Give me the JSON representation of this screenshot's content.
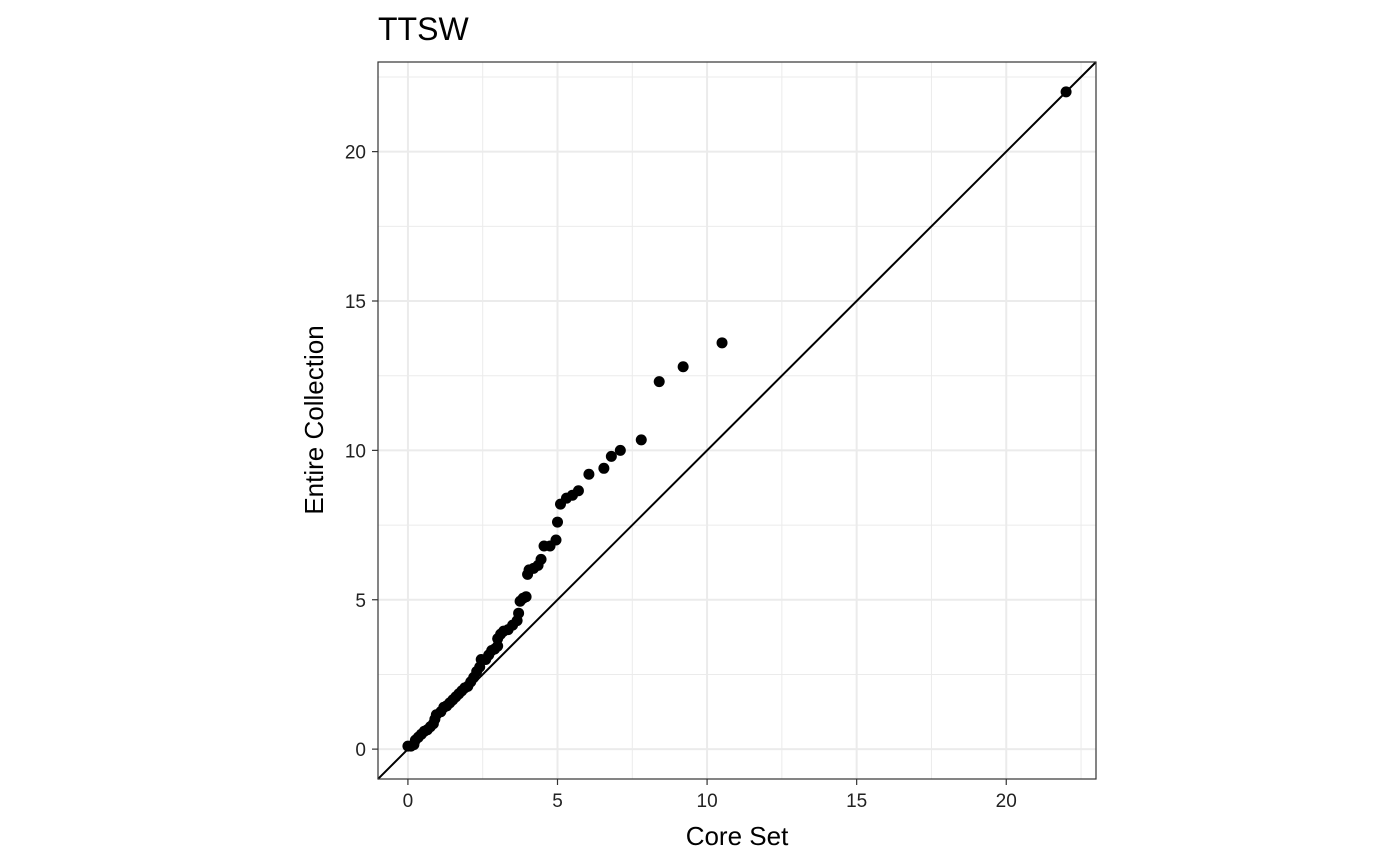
{
  "chart_data": {
    "type": "scatter",
    "title": "TTSW",
    "xlabel": "Core Set",
    "ylabel": "Entire Collection",
    "xlim": [
      -1,
      23
    ],
    "ylim": [
      -1,
      23
    ],
    "x_ticks": [
      0,
      5,
      10,
      15,
      20
    ],
    "y_ticks": [
      0,
      5,
      10,
      15,
      20
    ],
    "x_minor": [
      2.5,
      7.5,
      12.5,
      17.5,
      22.5
    ],
    "y_minor": [
      2.5,
      7.5,
      12.5,
      17.5,
      22.5
    ],
    "grid": true,
    "reference_line": "y = x",
    "legend": "none",
    "colors": {
      "points": "#000000",
      "panel_border": "#333333",
      "grid": "#ebebeb"
    },
    "points": [
      {
        "x": 0.0,
        "y": 0.1
      },
      {
        "x": 0.1,
        "y": 0.1
      },
      {
        "x": 0.2,
        "y": 0.15
      },
      {
        "x": 0.25,
        "y": 0.3
      },
      {
        "x": 0.35,
        "y": 0.4
      },
      {
        "x": 0.45,
        "y": 0.5
      },
      {
        "x": 0.55,
        "y": 0.6
      },
      {
        "x": 0.65,
        "y": 0.65
      },
      {
        "x": 0.75,
        "y": 0.75
      },
      {
        "x": 0.85,
        "y": 0.85
      },
      {
        "x": 0.9,
        "y": 1.0
      },
      {
        "x": 0.95,
        "y": 1.15
      },
      {
        "x": 1.1,
        "y": 1.25
      },
      {
        "x": 1.2,
        "y": 1.4
      },
      {
        "x": 1.3,
        "y": 1.45
      },
      {
        "x": 1.4,
        "y": 1.55
      },
      {
        "x": 1.5,
        "y": 1.65
      },
      {
        "x": 1.6,
        "y": 1.75
      },
      {
        "x": 1.7,
        "y": 1.85
      },
      {
        "x": 1.8,
        "y": 1.95
      },
      {
        "x": 1.9,
        "y": 2.05
      },
      {
        "x": 2.0,
        "y": 2.1
      },
      {
        "x": 2.1,
        "y": 2.25
      },
      {
        "x": 2.2,
        "y": 2.4
      },
      {
        "x": 2.3,
        "y": 2.6
      },
      {
        "x": 2.4,
        "y": 2.75
      },
      {
        "x": 2.45,
        "y": 3.0
      },
      {
        "x": 2.6,
        "y": 3.0
      },
      {
        "x": 2.7,
        "y": 3.15
      },
      {
        "x": 2.8,
        "y": 3.3
      },
      {
        "x": 2.9,
        "y": 3.35
      },
      {
        "x": 3.0,
        "y": 3.45
      },
      {
        "x": 3.0,
        "y": 3.7
      },
      {
        "x": 3.1,
        "y": 3.85
      },
      {
        "x": 3.2,
        "y": 3.95
      },
      {
        "x": 3.35,
        "y": 4.0
      },
      {
        "x": 3.5,
        "y": 4.15
      },
      {
        "x": 3.65,
        "y": 4.3
      },
      {
        "x": 3.7,
        "y": 4.55
      },
      {
        "x": 3.75,
        "y": 4.95
      },
      {
        "x": 3.85,
        "y": 5.05
      },
      {
        "x": 3.95,
        "y": 5.1
      },
      {
        "x": 4.0,
        "y": 5.85
      },
      {
        "x": 4.05,
        "y": 6.0
      },
      {
        "x": 4.2,
        "y": 6.05
      },
      {
        "x": 4.35,
        "y": 6.15
      },
      {
        "x": 4.45,
        "y": 6.35
      },
      {
        "x": 4.55,
        "y": 6.8
      },
      {
        "x": 4.75,
        "y": 6.8
      },
      {
        "x": 4.95,
        "y": 7.0
      },
      {
        "x": 5.0,
        "y": 7.6
      },
      {
        "x": 5.1,
        "y": 8.2
      },
      {
        "x": 5.3,
        "y": 8.4
      },
      {
        "x": 5.5,
        "y": 8.5
      },
      {
        "x": 5.7,
        "y": 8.65
      },
      {
        "x": 6.05,
        "y": 9.2
      },
      {
        "x": 6.55,
        "y": 9.4
      },
      {
        "x": 6.8,
        "y": 9.8
      },
      {
        "x": 7.1,
        "y": 10.0
      },
      {
        "x": 7.8,
        "y": 10.35
      },
      {
        "x": 8.4,
        "y": 12.3
      },
      {
        "x": 9.2,
        "y": 12.8
      },
      {
        "x": 10.5,
        "y": 13.6
      },
      {
        "x": 22.0,
        "y": 22.0
      }
    ]
  }
}
